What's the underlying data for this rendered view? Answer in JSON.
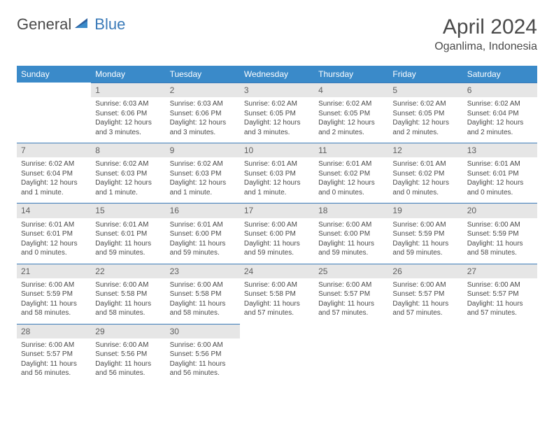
{
  "logo": {
    "text1": "General",
    "text2": "Blue",
    "icon_color": "#2c5f9e"
  },
  "title": "April 2024",
  "location": "Oganlima, Indonesia",
  "colors": {
    "header_bg": "#3a8ac9",
    "header_text": "#ffffff",
    "daynum_bg": "#e6e6e6",
    "daynum_text": "#606060",
    "rule": "#3a7ab8",
    "body_text": "#4a4a4a"
  },
  "dayHeaders": [
    "Sunday",
    "Monday",
    "Tuesday",
    "Wednesday",
    "Thursday",
    "Friday",
    "Saturday"
  ],
  "weeks": [
    [
      {
        "n": "",
        "sr": "",
        "ss": "",
        "dl": ""
      },
      {
        "n": "1",
        "sr": "Sunrise: 6:03 AM",
        "ss": "Sunset: 6:06 PM",
        "dl": "Daylight: 12 hours and 3 minutes."
      },
      {
        "n": "2",
        "sr": "Sunrise: 6:03 AM",
        "ss": "Sunset: 6:06 PM",
        "dl": "Daylight: 12 hours and 3 minutes."
      },
      {
        "n": "3",
        "sr": "Sunrise: 6:02 AM",
        "ss": "Sunset: 6:05 PM",
        "dl": "Daylight: 12 hours and 3 minutes."
      },
      {
        "n": "4",
        "sr": "Sunrise: 6:02 AM",
        "ss": "Sunset: 6:05 PM",
        "dl": "Daylight: 12 hours and 2 minutes."
      },
      {
        "n": "5",
        "sr": "Sunrise: 6:02 AM",
        "ss": "Sunset: 6:05 PM",
        "dl": "Daylight: 12 hours and 2 minutes."
      },
      {
        "n": "6",
        "sr": "Sunrise: 6:02 AM",
        "ss": "Sunset: 6:04 PM",
        "dl": "Daylight: 12 hours and 2 minutes."
      }
    ],
    [
      {
        "n": "7",
        "sr": "Sunrise: 6:02 AM",
        "ss": "Sunset: 6:04 PM",
        "dl": "Daylight: 12 hours and 1 minute."
      },
      {
        "n": "8",
        "sr": "Sunrise: 6:02 AM",
        "ss": "Sunset: 6:03 PM",
        "dl": "Daylight: 12 hours and 1 minute."
      },
      {
        "n": "9",
        "sr": "Sunrise: 6:02 AM",
        "ss": "Sunset: 6:03 PM",
        "dl": "Daylight: 12 hours and 1 minute."
      },
      {
        "n": "10",
        "sr": "Sunrise: 6:01 AM",
        "ss": "Sunset: 6:03 PM",
        "dl": "Daylight: 12 hours and 1 minute."
      },
      {
        "n": "11",
        "sr": "Sunrise: 6:01 AM",
        "ss": "Sunset: 6:02 PM",
        "dl": "Daylight: 12 hours and 0 minutes."
      },
      {
        "n": "12",
        "sr": "Sunrise: 6:01 AM",
        "ss": "Sunset: 6:02 PM",
        "dl": "Daylight: 12 hours and 0 minutes."
      },
      {
        "n": "13",
        "sr": "Sunrise: 6:01 AM",
        "ss": "Sunset: 6:01 PM",
        "dl": "Daylight: 12 hours and 0 minutes."
      }
    ],
    [
      {
        "n": "14",
        "sr": "Sunrise: 6:01 AM",
        "ss": "Sunset: 6:01 PM",
        "dl": "Daylight: 12 hours and 0 minutes."
      },
      {
        "n": "15",
        "sr": "Sunrise: 6:01 AM",
        "ss": "Sunset: 6:01 PM",
        "dl": "Daylight: 11 hours and 59 minutes."
      },
      {
        "n": "16",
        "sr": "Sunrise: 6:01 AM",
        "ss": "Sunset: 6:00 PM",
        "dl": "Daylight: 11 hours and 59 minutes."
      },
      {
        "n": "17",
        "sr": "Sunrise: 6:00 AM",
        "ss": "Sunset: 6:00 PM",
        "dl": "Daylight: 11 hours and 59 minutes."
      },
      {
        "n": "18",
        "sr": "Sunrise: 6:00 AM",
        "ss": "Sunset: 6:00 PM",
        "dl": "Daylight: 11 hours and 59 minutes."
      },
      {
        "n": "19",
        "sr": "Sunrise: 6:00 AM",
        "ss": "Sunset: 5:59 PM",
        "dl": "Daylight: 11 hours and 59 minutes."
      },
      {
        "n": "20",
        "sr": "Sunrise: 6:00 AM",
        "ss": "Sunset: 5:59 PM",
        "dl": "Daylight: 11 hours and 58 minutes."
      }
    ],
    [
      {
        "n": "21",
        "sr": "Sunrise: 6:00 AM",
        "ss": "Sunset: 5:59 PM",
        "dl": "Daylight: 11 hours and 58 minutes."
      },
      {
        "n": "22",
        "sr": "Sunrise: 6:00 AM",
        "ss": "Sunset: 5:58 PM",
        "dl": "Daylight: 11 hours and 58 minutes."
      },
      {
        "n": "23",
        "sr": "Sunrise: 6:00 AM",
        "ss": "Sunset: 5:58 PM",
        "dl": "Daylight: 11 hours and 58 minutes."
      },
      {
        "n": "24",
        "sr": "Sunrise: 6:00 AM",
        "ss": "Sunset: 5:58 PM",
        "dl": "Daylight: 11 hours and 57 minutes."
      },
      {
        "n": "25",
        "sr": "Sunrise: 6:00 AM",
        "ss": "Sunset: 5:57 PM",
        "dl": "Daylight: 11 hours and 57 minutes."
      },
      {
        "n": "26",
        "sr": "Sunrise: 6:00 AM",
        "ss": "Sunset: 5:57 PM",
        "dl": "Daylight: 11 hours and 57 minutes."
      },
      {
        "n": "27",
        "sr": "Sunrise: 6:00 AM",
        "ss": "Sunset: 5:57 PM",
        "dl": "Daylight: 11 hours and 57 minutes."
      }
    ],
    [
      {
        "n": "28",
        "sr": "Sunrise: 6:00 AM",
        "ss": "Sunset: 5:57 PM",
        "dl": "Daylight: 11 hours and 56 minutes."
      },
      {
        "n": "29",
        "sr": "Sunrise: 6:00 AM",
        "ss": "Sunset: 5:56 PM",
        "dl": "Daylight: 11 hours and 56 minutes."
      },
      {
        "n": "30",
        "sr": "Sunrise: 6:00 AM",
        "ss": "Sunset: 5:56 PM",
        "dl": "Daylight: 11 hours and 56 minutes."
      },
      {
        "n": "",
        "sr": "",
        "ss": "",
        "dl": ""
      },
      {
        "n": "",
        "sr": "",
        "ss": "",
        "dl": ""
      },
      {
        "n": "",
        "sr": "",
        "ss": "",
        "dl": ""
      },
      {
        "n": "",
        "sr": "",
        "ss": "",
        "dl": ""
      }
    ]
  ]
}
